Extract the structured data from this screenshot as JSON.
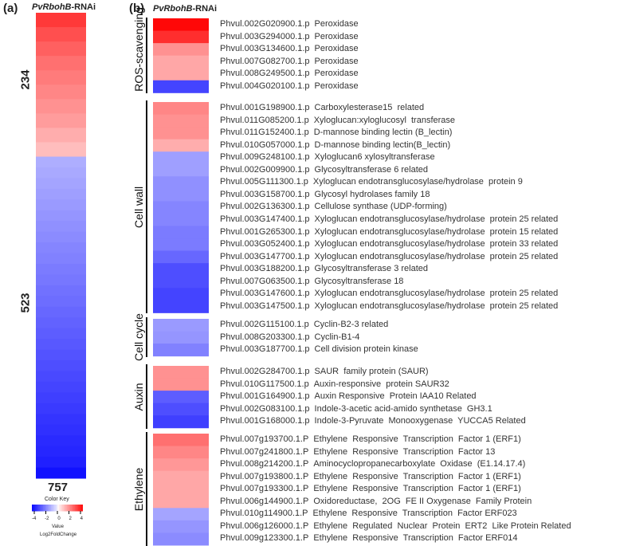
{
  "panel_a": {
    "label": "(a)",
    "title_italic": "PvRbohB",
    "title_suffix": "-RNAi"
  },
  "panel_b": {
    "label": "(b)",
    "title_italic": "PvRbohB",
    "title_suffix": "-RNAi"
  },
  "color_key": {
    "title": "Color Key",
    "ticks": [
      "-4",
      "-2",
      "0",
      "2",
      "4"
    ],
    "xlabel": "Value",
    "sublabel": "Log2FoldChange",
    "low_color": "#0000ff",
    "mid_color": "#ffffff",
    "high_color": "#ff0000"
  },
  "chart_data": [
    {
      "type": "heatmap",
      "title": "PvRbohB-RNAi",
      "counts": {
        "up": "234",
        "down": "523",
        "total": "757"
      },
      "value_range": [
        -4.5,
        4.5
      ],
      "up_stripes": [
        3.6,
        3.2,
        2.9,
        2.6,
        2.4,
        2.2,
        2.0,
        1.8,
        1.5,
        1.2
      ],
      "down_stripes": [
        -1.2,
        -1.3,
        -1.4,
        -1.5,
        -1.6,
        -1.7,
        -1.8,
        -1.9,
        -2.0,
        -2.1,
        -2.2,
        -2.3,
        -2.4,
        -2.5,
        -2.6,
        -2.7,
        -2.8,
        -2.9,
        -3.0,
        -3.1,
        -3.2,
        -3.3,
        -3.4,
        -3.5,
        -3.6,
        -3.7,
        -3.8,
        -3.9,
        -4.0,
        -4.3
      ]
    },
    {
      "type": "heatmap",
      "title": "PvRbohB-RNAi",
      "value_range": [
        -4.5,
        4.5
      ],
      "groups": [
        {
          "name": "ROS-scavenging",
          "genes": [
            {
              "id": "Phvul.002G020900.1.p",
              "desc": "Peroxidase",
              "value": 4.5
            },
            {
              "id": "Phvul.003G294000.1.p",
              "desc": "Peroxidase",
              "value": 3.8
            },
            {
              "id": "Phvul.003G134600.1.p",
              "desc": "Peroxidase",
              "value": 2.0
            },
            {
              "id": "Phvul.007G082700.1.p",
              "desc": "Peroxidase",
              "value": 1.6
            },
            {
              "id": "Phvul.008G249500.1.p",
              "desc": "Peroxidase",
              "value": 1.6
            },
            {
              "id": "Phvul.004G020100.1.p",
              "desc": "Peroxidase",
              "value": -3.3
            }
          ]
        },
        {
          "name": "Cell wall",
          "genes": [
            {
              "id": "Phvul.001G198900.1.p",
              "desc": "Carboxylesterase15  related",
              "value": 2.2
            },
            {
              "id": "Phvul.011G085200.1.p",
              "desc": "Xyloglucan:xyloglucosyl  transferase",
              "value": 2.0
            },
            {
              "id": "Phvul.011G152400.1.p",
              "desc": "D-mannose binding lectin (B_lectin)",
              "value": 2.0
            },
            {
              "id": "Phvul.010G057000.1.p",
              "desc": "D-mannose binding lectin(B_lectin)",
              "value": 1.5
            },
            {
              "id": "Phvul.009G248100.1.p",
              "desc": "Xyloglucan6 xylosyltransferase",
              "value": -1.5
            },
            {
              "id": "Phvul.002G009900.1.p",
              "desc": "Glycosyltransferase 6 related",
              "value": -1.5
            },
            {
              "id": "Phvul.005G111300.1.p",
              "desc": "Xyloglucan endotransglucosylase/hydrolase  protein 9",
              "value": -1.8
            },
            {
              "id": "Phvul.003G158700.1.p",
              "desc": "Glycosyl hydrolases family 18",
              "value": -1.8
            },
            {
              "id": "Phvul.002G136300.1.p",
              "desc": "Cellulose synthase (UDP-forming)",
              "value": -2.0
            },
            {
              "id": "Phvul.003G147400.1.p",
              "desc": "Xyloglucan endotransglucosylase/hydrolase  protein 25 related",
              "value": -2.0
            },
            {
              "id": "Phvul.001G265300.1.p",
              "desc": "Xyloglucan endotransglucosylase/hydrolase  protein 15 related",
              "value": -2.2
            },
            {
              "id": "Phvul.003G052400.1.p",
              "desc": "Xyloglucan endotransglucosylase/hydrolase  protein 33 related",
              "value": -2.2
            },
            {
              "id": "Phvul.003G147700.1.p",
              "desc": "Xyloglucan endotransglucosylase/hydrolase  protein 25 related",
              "value": -2.6
            },
            {
              "id": "Phvul.003G188200.1.p",
              "desc": "Glycosyltransferase 3 related",
              "value": -3.1
            },
            {
              "id": "Phvul.007G063500.1.p",
              "desc": "Glycosyltransferase 18",
              "value": -3.1
            },
            {
              "id": "Phvul.003G147600.1.p",
              "desc": "Xyloglucan endotransglucosylase/hydrolase  protein 25 related",
              "value": -3.3
            },
            {
              "id": "Phvul.003G147500.1.p",
              "desc": "Xyloglucan endotransglucosylase/hydrolase  protein 25 related",
              "value": -3.3
            }
          ]
        },
        {
          "name": "Cell cycle",
          "genes": [
            {
              "id": "Phvul.002G115100.1.p",
              "desc": "Cyclin-B2-3 related",
              "value": -1.6
            },
            {
              "id": "Phvul.008G203300.1.p",
              "desc": "Cyclin-B1-4",
              "value": -1.7
            },
            {
              "id": "Phvul.003G187700.1.p",
              "desc": "Cell division protein kinase",
              "value": -2.1
            }
          ]
        },
        {
          "name": "Auxin",
          "genes": [
            {
              "id": "Phvul.002G284700.1.p",
              "desc": "SAUR  family protein (SAUR)",
              "value": 2.0
            },
            {
              "id": "Phvul.010G117500.1.p",
              "desc": "Auxin-responsive  protein SAUR32",
              "value": 2.0
            },
            {
              "id": "Phvul.001G164900.1.p",
              "desc": "Auxin Responsive  Protein IAA10 Related",
              "value": -2.8
            },
            {
              "id": "Phvul.002G083100.1.p",
              "desc": "Indole-3-acetic acid-amido synthetase  GH3.1",
              "value": -3.1
            },
            {
              "id": "Phvul.001G168000.1.p",
              "desc": "Indole-3-Pyruvate  Monooxygenase  YUCCA5 Related",
              "value": -3.4
            }
          ]
        },
        {
          "name": "Ethylene",
          "genes": [
            {
              "id": "Phvul.007g193700.1.P",
              "desc": "Ethylene  Responsive  Transcription  Factor 1 (ERF1)",
              "value": 2.6
            },
            {
              "id": "Phvul.007g241800.1.P",
              "desc": "Ethylene  Responsive  Transcription  Factor 13",
              "value": 2.2
            },
            {
              "id": "Phvul.008g214200.1.P",
              "desc": "Aminocyclopropanecarboxylate  Oxidase  (E1.14.17.4)",
              "value": 1.9
            },
            {
              "id": "Phvul.007g193800.1.P",
              "desc": "Ethylene  Responsive  Transcription  Factor 1 (ERF1)",
              "value": 1.6
            },
            {
              "id": "Phvul.007g193300.1.P",
              "desc": "Ethylene  Responsive  Transcription  Factor 1 (ERF1)",
              "value": 1.6
            },
            {
              "id": "Phvul.006g144900.1.P",
              "desc": "Oxidoreductase,  2OG  FE II Oxygenase  Family Protein",
              "value": 1.6
            },
            {
              "id": "Phvul.010g114900.1.P",
              "desc": "Ethylene  Responsive  Transcription  Factor ERF023",
              "value": -1.4
            },
            {
              "id": "Phvul.006g126000.1.P",
              "desc": "Ethylene  Regulated  Nuclear  Protein  ERT2  Like Protein Related",
              "value": -1.7
            },
            {
              "id": "Phvul.009g123300.1.P",
              "desc": "Ethylene  Responsive  Transcription  Factor ERF014",
              "value": -1.9
            }
          ]
        }
      ]
    }
  ]
}
